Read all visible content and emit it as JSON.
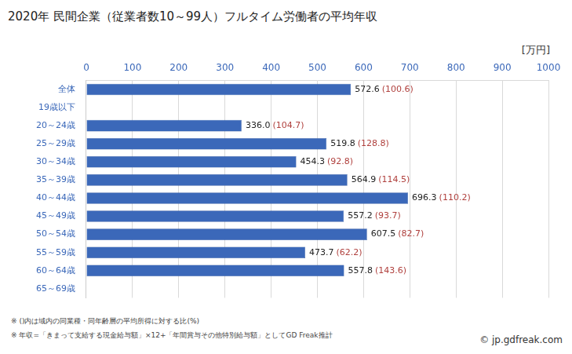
{
  "chart_data": {
    "type": "bar",
    "orientation": "horizontal",
    "title": "2020年 民間企業（従業者数10～99人）フルタイム労働者の平均年収",
    "x_label": "[万円]",
    "categories": [
      "全体",
      "19歳以下",
      "20～24歳",
      "25～29歳",
      "30～34歳",
      "35～39歳",
      "40～44歳",
      "45～49歳",
      "50～54歳",
      "55～59歳",
      "60～64歳",
      "65～69歳"
    ],
    "values": [
      572.6,
      null,
      336.0,
      519.8,
      454.3,
      564.9,
      696.3,
      557.2,
      607.5,
      473.7,
      557.8,
      null
    ],
    "value_labels": [
      "572.6",
      null,
      "336.0",
      "519.8",
      "454.3",
      "564.9",
      "696.3",
      "557.2",
      "607.5",
      "473.7",
      "557.8",
      null
    ],
    "ratio_labels": [
      "(100.6)",
      null,
      "(104.7)",
      "(128.8)",
      "(92.8)",
      "(114.5)",
      "(110.2)",
      "(93.7)",
      "(82.7)",
      "(62.2)",
      "(143.6)",
      null
    ],
    "color": "#3b68b9",
    "xlim": [
      0,
      1000
    ],
    "xticks": [
      0,
      100,
      200,
      300,
      400,
      500,
      600,
      700,
      800,
      900,
      1000
    ],
    "grid": true,
    "data_labels": true,
    "notes": [
      "※ ()内は域内の同業種・同年齢層の平均所得に対する比(%)",
      "※ 年収=「きまって支給する現金給与額」×12+「年間賞与その他特別給与額」としてGD Freak推計"
    ],
    "source": "© jp.gdfreak.com"
  }
}
